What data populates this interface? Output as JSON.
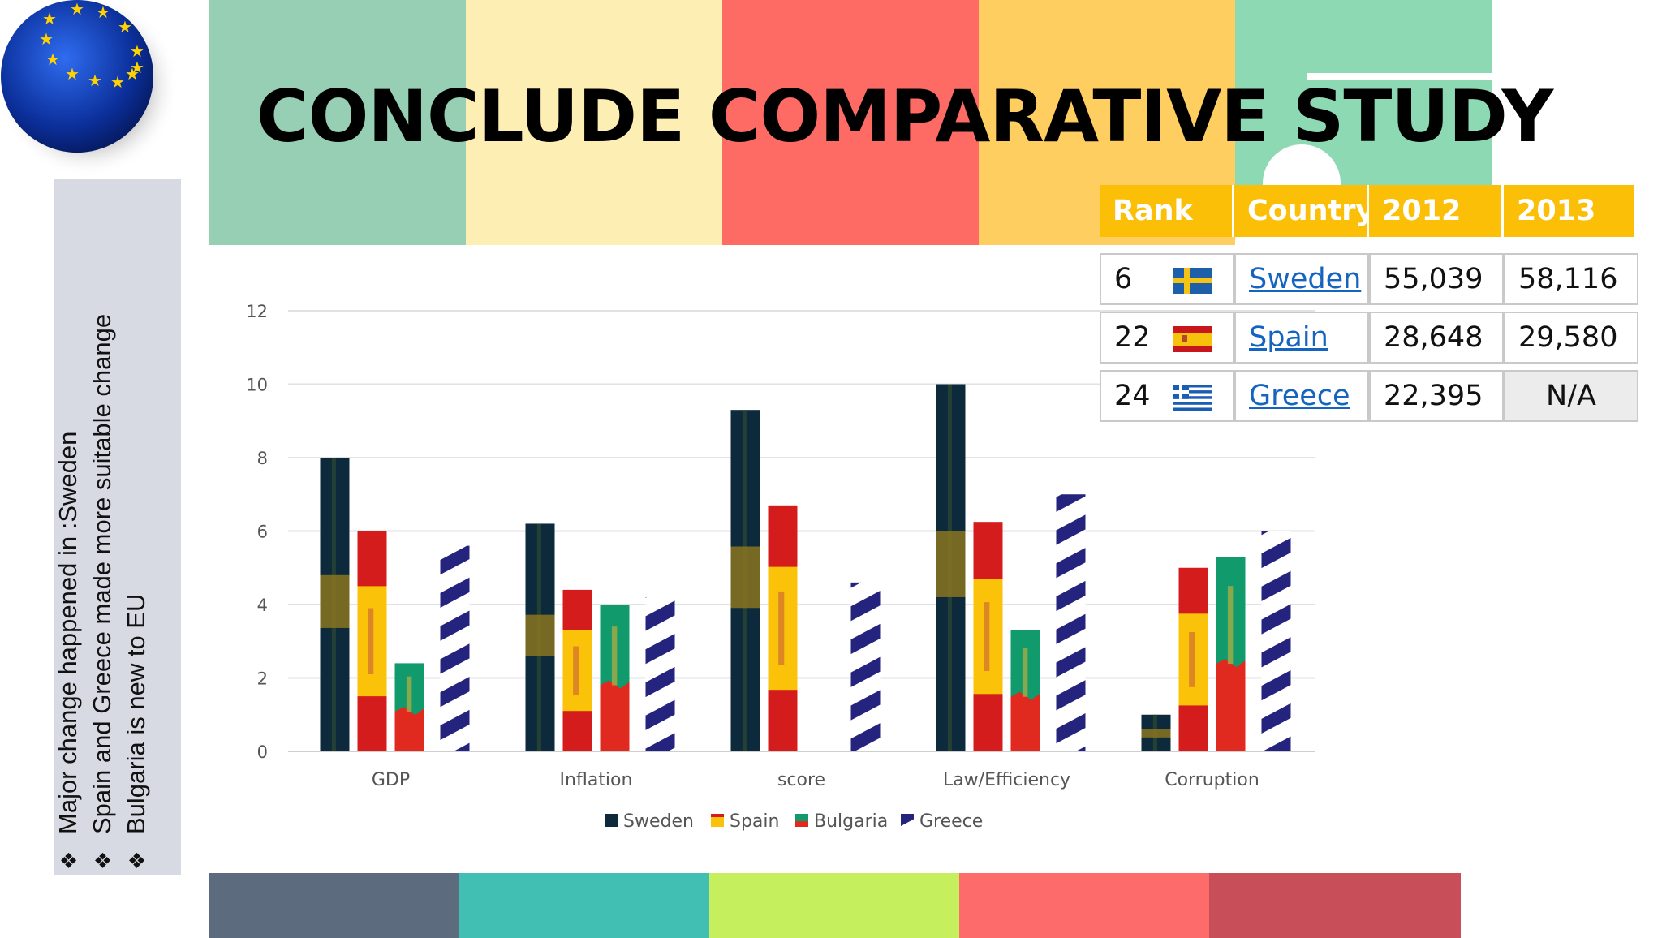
{
  "slide": {
    "title": "CONCLUDE COMPARATIVE STUDY",
    "notes": [
      "Major change happened in :Sweden",
      "Spain and Greece made more suitable change",
      "Bulgaria is new to EU"
    ],
    "bullet_icon": "❖",
    "top_stripe_colors": [
      "#97cfb4",
      "#fdeeb3",
      "#fe6b65",
      "#fecf60",
      "#8dd9b4"
    ],
    "bottom_stripe_colors": [
      "#5c6b7d",
      "#40bfb2",
      "#c6ef5e",
      "#fe6b6b",
      "#c84e5a"
    ]
  },
  "rank_table": {
    "headers": [
      "Rank",
      "Country",
      "2012",
      "2013"
    ],
    "rows": [
      {
        "rank": "6",
        "flag": "sweden-flag",
        "country": "Sweden",
        "y2012": "55,039",
        "y2013": "58,116"
      },
      {
        "rank": "22",
        "flag": "spain-flag",
        "country": "Spain",
        "y2012": "28,648",
        "y2013": "29,580"
      },
      {
        "rank": "24",
        "flag": "greece-flag",
        "country": "Greece",
        "y2012": "22,395",
        "y2013": "N/A"
      }
    ],
    "header_color": "#fbbf07"
  },
  "chart_data": {
    "type": "bar",
    "categories": [
      "GDP",
      "Inflation",
      "score",
      "Law/Efficiency",
      "Corruption"
    ],
    "series": [
      {
        "name": "Sweden",
        "values": [
          8,
          6.2,
          9.3,
          10,
          1
        ],
        "fill": "sweden-flag-pattern"
      },
      {
        "name": "Spain",
        "values": [
          6,
          4.4,
          6.7,
          6.25,
          5
        ],
        "fill": "spain-flag-pattern"
      },
      {
        "name": "Bulgaria",
        "values": [
          2.4,
          4,
          0,
          3.3,
          5.3
        ],
        "fill": "bulgaria-flag-pattern"
      },
      {
        "name": "Greece",
        "values": [
          5.6,
          4.2,
          4.6,
          7,
          6
        ],
        "fill": "greece-flag-pattern"
      }
    ],
    "y_ticks": [
      "0",
      "2",
      "4",
      "6",
      "8",
      "10",
      "12"
    ],
    "ylim": [
      0,
      12
    ],
    "grid": true,
    "legend": "bottom"
  }
}
